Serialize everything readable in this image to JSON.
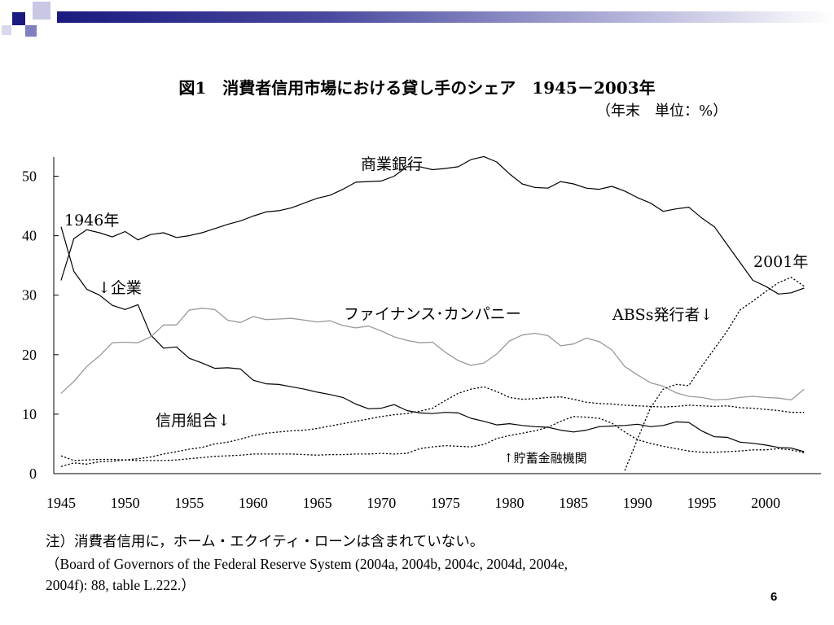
{
  "header": {
    "title": "図1　消費者信用市場における貸し手のシェア　1945－2003年",
    "subtitle": "（年末　単位：%）"
  },
  "notes": {
    "line1": "注）消費者信用に，ホーム・エクイティ・ローンは含まれていない。",
    "line2": "（Board of Governors of the Federal Reserve System (2004a, 2004b, 2004c, 2004d, 2004e,",
    "line3": "2004f): 88, table L.222.）"
  },
  "page_number": "6",
  "colors": {
    "decor_dark": "#1a1a80",
    "decor_mid": "#8080c0",
    "gray_series": "#999999"
  },
  "chart_data": {
    "type": "line",
    "title": "図1　消費者信用市場における貸し手のシェア　1945－2003年",
    "xlim": [
      1945,
      2004
    ],
    "ylim": [
      0,
      55
    ],
    "x_ticks": [
      1945,
      1950,
      1955,
      1960,
      1965,
      1970,
      1975,
      1980,
      1985,
      1990,
      1995,
      2000
    ],
    "y_ticks": [
      0,
      10,
      20,
      30,
      40,
      50
    ],
    "grid": false,
    "annotations": [
      {
        "text": "商業銀行"
      },
      {
        "text": "1946年"
      },
      {
        "text": "2001年"
      },
      {
        "text": "↓企業"
      },
      {
        "text": "ファイナンス･カンパニー"
      },
      {
        "text": "ABSs発行者↓"
      },
      {
        "text": "信用組合↓"
      },
      {
        "text": "↑貯蓄金融機関"
      }
    ],
    "x": [
      1945,
      1946,
      1947,
      1948,
      1949,
      1950,
      1951,
      1952,
      1953,
      1954,
      1955,
      1956,
      1957,
      1958,
      1959,
      1960,
      1961,
      1962,
      1963,
      1964,
      1965,
      1966,
      1967,
      1968,
      1969,
      1970,
      1971,
      1972,
      1973,
      1974,
      1975,
      1976,
      1977,
      1978,
      1979,
      1980,
      1981,
      1982,
      1983,
      1984,
      1985,
      1986,
      1987,
      1988,
      1989,
      1990,
      1991,
      1992,
      1993,
      1994,
      1995,
      1996,
      1997,
      1998,
      1999,
      2000,
      2001,
      2002,
      2003
    ],
    "series": [
      {
        "name": "商業銀行",
        "style": "solid-black",
        "values": [
          32.5,
          39.5,
          41.0,
          40.5,
          39.8,
          40.7,
          39.3,
          40.2,
          40.5,
          39.7,
          40.0,
          40.5,
          41.2,
          41.9,
          42.5,
          43.3,
          44.0,
          44.2,
          44.7,
          45.5,
          46.3,
          46.8,
          47.8,
          49.0,
          49.1,
          49.2,
          50.0,
          51.6,
          51.6,
          51.1,
          51.3,
          51.6,
          52.8,
          53.3,
          52.4,
          50.4,
          48.7,
          48.1,
          48.0,
          49.1,
          48.7,
          48.0,
          47.8,
          48.3,
          47.5,
          46.4,
          45.5,
          44.1,
          44.5,
          44.8,
          43.0,
          41.5,
          38.5,
          35.5,
          32.5,
          31.5,
          30.2,
          30.4,
          31.2
        ]
      },
      {
        "name": "企業",
        "style": "solid-black",
        "values": [
          41.5,
          34.0,
          31.0,
          30.0,
          28.3,
          27.6,
          28.4,
          23.3,
          21.1,
          21.3,
          19.4,
          18.6,
          17.7,
          17.8,
          17.6,
          15.7,
          15.1,
          15.0,
          14.6,
          14.2,
          13.7,
          13.3,
          12.8,
          11.7,
          10.9,
          11.0,
          11.6,
          10.6,
          10.2,
          10.1,
          10.3,
          10.2,
          9.3,
          8.8,
          8.2,
          8.4,
          8.1,
          7.9,
          7.8,
          7.3,
          7.0,
          7.3,
          7.9,
          8.0,
          8.1,
          8.3,
          7.9,
          8.1,
          8.7,
          8.6,
          7.2,
          6.2,
          6.1,
          5.3,
          5.1,
          4.8,
          4.4,
          4.3,
          3.7
        ]
      },
      {
        "name": "ファイナンス･カンパニー",
        "style": "solid-gray",
        "values": [
          13.5,
          15.5,
          18.0,
          19.8,
          22.0,
          22.1,
          22.0,
          23.0,
          25.0,
          25.0,
          27.5,
          27.8,
          27.6,
          25.8,
          25.4,
          26.4,
          25.9,
          26.0,
          26.1,
          25.8,
          25.5,
          25.7,
          24.9,
          24.5,
          24.8,
          24.0,
          23.0,
          22.4,
          22.0,
          22.1,
          20.4,
          19.0,
          18.2,
          18.6,
          20.1,
          22.3,
          23.3,
          23.6,
          23.2,
          21.5,
          21.8,
          22.8,
          22.2,
          20.8,
          18.0,
          16.6,
          15.3,
          14.7,
          13.6,
          13.0,
          12.8,
          12.4,
          12.5,
          12.8,
          13.0,
          12.8,
          12.7,
          12.4,
          14.2
        ]
      },
      {
        "name": "信用組合",
        "style": "dotted-black",
        "values": [
          1.2,
          1.8,
          1.6,
          2.0,
          2.1,
          2.3,
          2.5,
          2.8,
          3.3,
          3.7,
          4.1,
          4.4,
          5.0,
          5.3,
          5.8,
          6.4,
          6.8,
          7.0,
          7.2,
          7.3,
          7.6,
          8.0,
          8.4,
          8.8,
          9.2,
          9.6,
          9.9,
          10.1,
          10.5,
          11.0,
          12.3,
          13.5,
          14.2,
          14.6,
          13.8,
          12.8,
          12.5,
          12.6,
          12.8,
          12.9,
          12.5,
          12.0,
          11.8,
          11.7,
          11.5,
          11.4,
          11.3,
          11.2,
          11.3,
          11.5,
          11.4,
          11.3,
          11.4,
          11.1,
          11.0,
          10.8,
          10.6,
          10.3,
          10.3
        ]
      },
      {
        "name": "ABSs発行者",
        "style": "dotted-black",
        "values": [
          null,
          null,
          null,
          null,
          null,
          null,
          null,
          null,
          null,
          null,
          null,
          null,
          null,
          null,
          null,
          null,
          null,
          null,
          null,
          null,
          null,
          null,
          null,
          null,
          null,
          null,
          null,
          null,
          null,
          null,
          null,
          null,
          null,
          null,
          null,
          null,
          null,
          null,
          null,
          null,
          null,
          null,
          null,
          null,
          0.5,
          5.8,
          11.0,
          14.2,
          15.0,
          14.8,
          18.0,
          21.0,
          24.0,
          27.5,
          29.0,
          30.6,
          32.1,
          33.0,
          31.5
        ]
      },
      {
        "name": "貯蓄金融機関",
        "style": "dotted-black",
        "values": [
          3.0,
          2.2,
          2.3,
          2.4,
          2.4,
          2.3,
          2.2,
          2.2,
          2.2,
          2.3,
          2.5,
          2.7,
          2.9,
          3.0,
          3.1,
          3.3,
          3.3,
          3.3,
          3.3,
          3.2,
          3.1,
          3.2,
          3.2,
          3.3,
          3.3,
          3.4,
          3.3,
          3.4,
          4.2,
          4.5,
          4.7,
          4.6,
          4.5,
          4.9,
          5.9,
          6.4,
          6.8,
          7.2,
          7.8,
          8.8,
          9.6,
          9.5,
          9.3,
          8.5,
          7.0,
          5.7,
          5.1,
          4.6,
          4.2,
          3.8,
          3.6,
          3.6,
          3.7,
          3.8,
          4.0,
          4.0,
          4.2,
          4.0,
          3.5
        ]
      }
    ]
  }
}
